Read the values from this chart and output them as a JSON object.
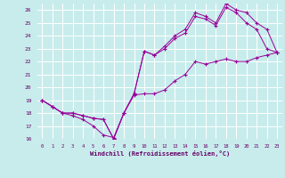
{
  "xlabel": "Windchill (Refroidissement éolien,°C)",
  "xlim": [
    -0.5,
    23.5
  ],
  "ylim": [
    16,
    26.5
  ],
  "xticks": [
    0,
    1,
    2,
    3,
    4,
    5,
    6,
    7,
    8,
    9,
    10,
    11,
    12,
    13,
    14,
    15,
    16,
    17,
    18,
    19,
    20,
    21,
    22,
    23
  ],
  "yticks": [
    16,
    17,
    18,
    19,
    20,
    21,
    22,
    23,
    24,
    25,
    26
  ],
  "bg_color": "#c8ecec",
  "grid_color": "#ffffff",
  "line_color": "#990099",
  "line1_x": [
    0,
    1,
    2,
    3,
    4,
    5,
    6,
    7,
    8,
    9,
    10,
    11,
    12,
    13,
    14,
    15,
    16,
    17,
    18,
    19,
    20,
    21,
    22,
    23
  ],
  "line1_y": [
    19.0,
    18.5,
    18.0,
    17.8,
    17.5,
    17.0,
    16.3,
    16.1,
    18.0,
    19.4,
    19.5,
    19.5,
    19.8,
    20.5,
    21.0,
    22.0,
    21.8,
    22.0,
    22.2,
    22.0,
    22.0,
    22.3,
    22.5,
    22.7
  ],
  "line2_x": [
    0,
    1,
    2,
    3,
    4,
    5,
    6,
    7,
    8,
    9,
    10,
    11,
    12,
    13,
    14,
    15,
    16,
    17,
    18,
    19,
    20,
    21,
    22,
    23
  ],
  "line2_y": [
    19.0,
    18.5,
    18.0,
    18.0,
    17.8,
    17.6,
    17.5,
    16.0,
    18.0,
    19.5,
    22.8,
    22.5,
    23.0,
    23.8,
    24.2,
    25.5,
    25.3,
    24.8,
    26.2,
    25.8,
    25.0,
    24.5,
    23.0,
    22.7
  ],
  "line3_x": [
    0,
    1,
    2,
    3,
    4,
    5,
    6,
    7,
    8,
    9,
    10,
    11,
    12,
    13,
    14,
    15,
    16,
    17,
    18,
    19,
    20,
    21,
    22,
    23
  ],
  "line3_y": [
    19.0,
    18.5,
    18.0,
    18.0,
    17.8,
    17.6,
    17.5,
    16.0,
    18.0,
    19.5,
    22.8,
    22.5,
    23.2,
    24.0,
    24.5,
    25.8,
    25.5,
    25.0,
    26.5,
    26.0,
    25.8,
    25.0,
    24.5,
    22.7
  ]
}
